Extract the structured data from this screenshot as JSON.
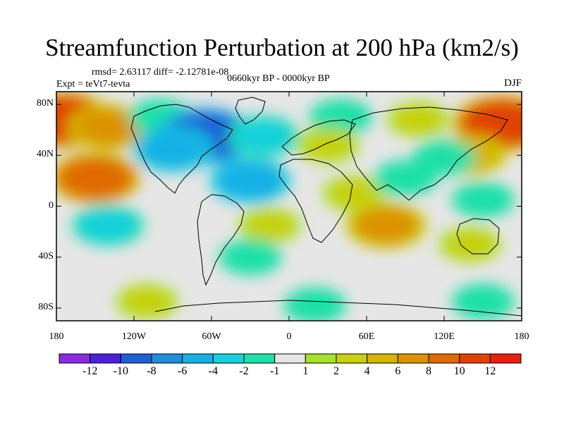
{
  "title": "Streamfunction Perturbation at 200 hPa (km2/s)",
  "stats": "rmsd= 2.63117 diff= -2.12781e-08",
  "experiment": "Expt = teVt7-tevta",
  "period": "0660kyr BP - 0000kyr BP",
  "season": "DJF",
  "map": {
    "projection": "cylindrical equidistant",
    "lon_range": [
      -180,
      180
    ],
    "lat_range": [
      -90,
      90
    ],
    "x_ticks": [
      {
        "lon": -180,
        "label": "180"
      },
      {
        "lon": -120,
        "label": "120W"
      },
      {
        "lon": -60,
        "label": "60W"
      },
      {
        "lon": 0,
        "label": "0"
      },
      {
        "lon": 60,
        "label": "60E"
      },
      {
        "lon": 120,
        "label": "120E"
      },
      {
        "lon": 180,
        "label": "180"
      }
    ],
    "y_ticks": [
      {
        "lat": 80,
        "label": "80N"
      },
      {
        "lat": 40,
        "label": "40N"
      },
      {
        "lat": 0,
        "label": "0"
      },
      {
        "lat": -40,
        "label": "40S"
      },
      {
        "lat": -80,
        "label": "80S"
      }
    ]
  },
  "colorbar": {
    "colors": [
      "#8a2be2",
      "#4b22d8",
      "#1f5fd8",
      "#1e8ee0",
      "#16b0e6",
      "#18d0dc",
      "#1ee0a8",
      "#e6e6e6",
      "#a6e22a",
      "#c8d010",
      "#d6b400",
      "#dc9200",
      "#e06a00",
      "#e04200",
      "#e82010"
    ],
    "labels": [
      {
        "index": 1,
        "text": "-12"
      },
      {
        "index": 2,
        "text": "-10"
      },
      {
        "index": 3,
        "text": "-8"
      },
      {
        "index": 4,
        "text": "-6"
      },
      {
        "index": 5,
        "text": "-4"
      },
      {
        "index": 6,
        "text": "-2"
      },
      {
        "index": 7,
        "text": "-1"
      },
      {
        "index": 8,
        "text": "1"
      },
      {
        "index": 9,
        "text": "2"
      },
      {
        "index": 10,
        "text": "4"
      },
      {
        "index": 11,
        "text": "6"
      },
      {
        "index": 12,
        "text": "8"
      },
      {
        "index": 13,
        "text": "10"
      },
      {
        "index": 14,
        "text": "12"
      }
    ]
  },
  "anomalies": [
    {
      "lon": -175,
      "lat": 68,
      "value": 10
    },
    {
      "lon": -140,
      "lat": 62,
      "value": 6
    },
    {
      "lon": -100,
      "lat": 70,
      "value": -2
    },
    {
      "lon": -65,
      "lat": 55,
      "value": -10
    },
    {
      "lon": -90,
      "lat": 45,
      "value": -6
    },
    {
      "lon": -20,
      "lat": 55,
      "value": -4
    },
    {
      "lon": 40,
      "lat": 70,
      "value": -2
    },
    {
      "lon": 100,
      "lat": 68,
      "value": 2
    },
    {
      "lon": 165,
      "lat": 65,
      "value": 10
    },
    {
      "lon": 140,
      "lat": 40,
      "value": 4
    },
    {
      "lon": 30,
      "lat": 48,
      "value": 2
    },
    {
      "lon": 120,
      "lat": 38,
      "value": -2
    },
    {
      "lon": -150,
      "lat": 22,
      "value": 8
    },
    {
      "lon": -30,
      "lat": 20,
      "value": -6
    },
    {
      "lon": 50,
      "lat": 10,
      "value": 2
    },
    {
      "lon": 90,
      "lat": 22,
      "value": -2
    },
    {
      "lon": 150,
      "lat": 5,
      "value": -2
    },
    {
      "lon": -140,
      "lat": -15,
      "value": -4
    },
    {
      "lon": 75,
      "lat": -15,
      "value": 6
    },
    {
      "lon": -15,
      "lat": -15,
      "value": 2
    },
    {
      "lon": -30,
      "lat": -40,
      "value": -2
    },
    {
      "lon": 140,
      "lat": -30,
      "value": 2
    },
    {
      "lon": -110,
      "lat": -75,
      "value": 2
    },
    {
      "lon": 20,
      "lat": -78,
      "value": -2
    },
    {
      "lon": 150,
      "lat": -75,
      "value": -2
    }
  ]
}
